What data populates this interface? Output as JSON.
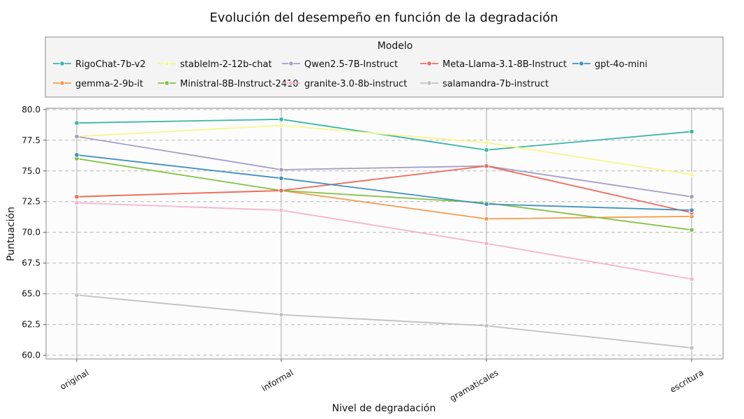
{
  "chart_data": {
    "type": "line",
    "title": "Evolución del desempeño en función de la degradación",
    "xlabel": "Nivel de degradación",
    "ylabel": "Puntuación",
    "categories": [
      "original",
      "informal",
      "gramaticales",
      "escritura"
    ],
    "ylim": [
      59.7,
      80.1
    ],
    "yticks": [
      "60.0",
      "62.5",
      "65.0",
      "67.5",
      "70.0",
      "72.5",
      "75.0",
      "77.5",
      "80.0"
    ],
    "grid": true,
    "legend_title": "Modelo",
    "legend_position": "top",
    "series": [
      {
        "name": "RigoChat-7b-v2",
        "color": "#3ab5a8",
        "values": [
          78.9,
          79.2,
          76.7,
          78.2
        ]
      },
      {
        "name": "gemma-2-9b-it",
        "color": "#f7994a",
        "values": [
          72.9,
          73.4,
          71.1,
          71.3
        ]
      },
      {
        "name": "stablelm-2-12b-chat",
        "color": "#f7f68d",
        "values": [
          77.8,
          78.7,
          77.3,
          74.7
        ]
      },
      {
        "name": "Ministral-8B-Instruct-2410",
        "color": "#82c245",
        "values": [
          76.0,
          73.4,
          72.4,
          70.2
        ]
      },
      {
        "name": "Qwen2.5-7B-Instruct",
        "color": "#a59ec7",
        "values": [
          77.8,
          75.1,
          75.4,
          72.9
        ]
      },
      {
        "name": "granite-3.0-8b-instruct",
        "color": "#f7b3cc",
        "values": [
          72.4,
          71.8,
          69.1,
          66.2
        ]
      },
      {
        "name": "Meta-Llama-3.1-8B-Instruct",
        "color": "#ef6a5a",
        "values": [
          72.9,
          73.4,
          75.4,
          71.6
        ]
      },
      {
        "name": "salamandra-7b-instruct",
        "color": "#c0c0c0",
        "values": [
          64.9,
          63.3,
          62.4,
          60.6
        ]
      },
      {
        "name": "gpt-4o-mini",
        "color": "#4191bd",
        "values": [
          76.3,
          74.4,
          72.3,
          71.8
        ]
      }
    ]
  }
}
